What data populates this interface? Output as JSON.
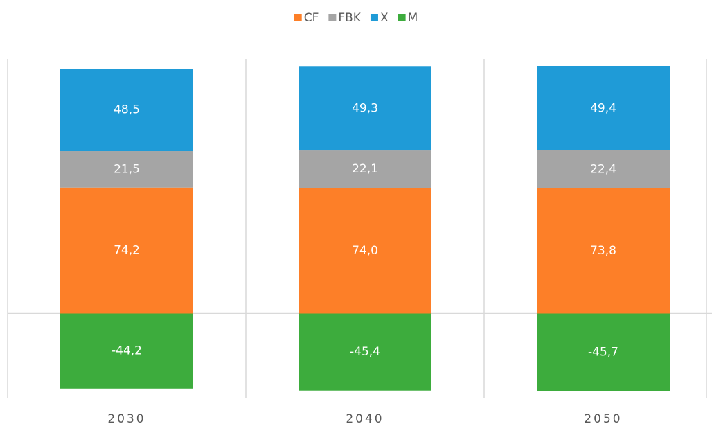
{
  "chart_data": {
    "type": "stacked_bar",
    "categories": [
      "2030",
      "2040",
      "2050"
    ],
    "series": [
      {
        "name": "CF",
        "color": "#fd7f28",
        "values": [
          74.2,
          74.0,
          73.8
        ],
        "value_labels": [
          "74,2",
          "74,0",
          "73,8"
        ]
      },
      {
        "name": "FBK",
        "color": "#a5a5a5",
        "values": [
          21.5,
          22.1,
          22.4
        ],
        "value_labels": [
          "21,5",
          "22,1",
          "22,4"
        ]
      },
      {
        "name": "X",
        "color": "#1f9bd7",
        "values": [
          48.5,
          49.3,
          49.4
        ],
        "value_labels": [
          "48,5",
          "49,3",
          "49,4"
        ]
      },
      {
        "name": "M",
        "color": "#3dac3d",
        "values": [
          -44.2,
          -45.4,
          -45.7
        ],
        "value_labels": [
          "-44,2",
          "-45,4",
          "-45,7"
        ]
      }
    ],
    "ylim": [
      -50,
      150
    ],
    "legend": "top"
  }
}
